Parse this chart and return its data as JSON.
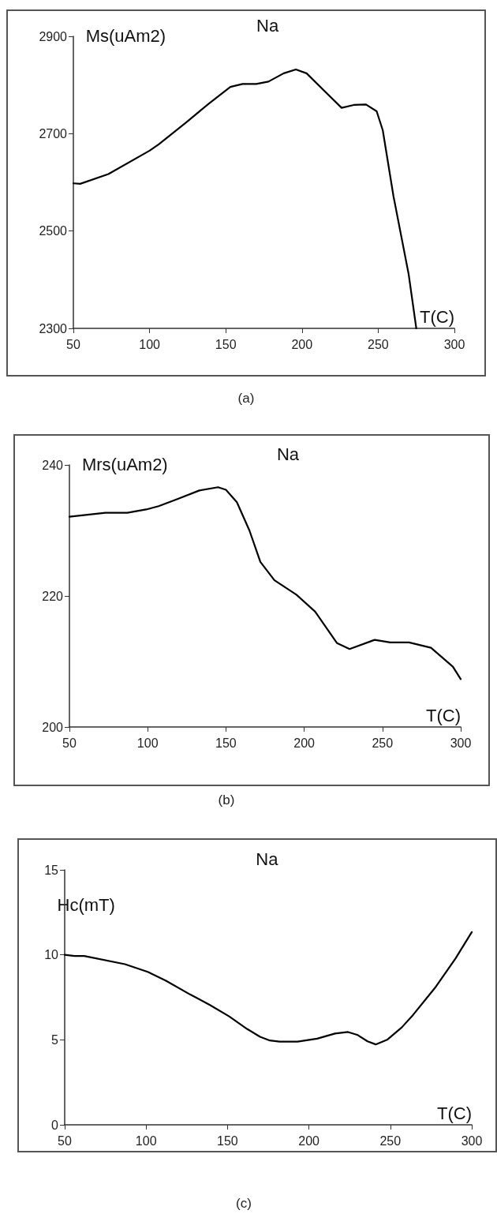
{
  "chart_data": [
    {
      "type": "line",
      "title": "Na",
      "xlabel": "T(C)",
      "ylabel": "Ms(uAm2)",
      "annotations": [
        "(a)"
      ],
      "color": "#000000",
      "marker": "none",
      "grid": false,
      "x": [
        50,
        54.5,
        73,
        100,
        106,
        124,
        139,
        153,
        161,
        170,
        178,
        188,
        196,
        203,
        215,
        226,
        234,
        242,
        249,
        253,
        260,
        270,
        275
      ],
      "values": [
        2598,
        2597,
        2617,
        2665,
        2678,
        2723,
        2762,
        2796,
        2802,
        2802,
        2807,
        2824,
        2832,
        2824,
        2787,
        2753,
        2759,
        2760,
        2746,
        2707,
        2572,
        2411,
        2300
      ],
      "xlim": [
        50,
        300
      ],
      "xticks": [
        50,
        100,
        150,
        200,
        250,
        300
      ],
      "ylim": [
        2300,
        2900
      ],
      "yticks": [
        2300,
        2500,
        2700,
        2900
      ]
    },
    {
      "type": "line",
      "title": "Na",
      "xlabel": "T(C)",
      "ylabel": "Mrs(uAm2)",
      "annotations": [
        "(b)"
      ],
      "color": "#000000",
      "marker": "none",
      "grid": false,
      "x": [
        50,
        73,
        87,
        99,
        107,
        119,
        133,
        145,
        150,
        157,
        165,
        172,
        181,
        195,
        207,
        221,
        229,
        245,
        255,
        267,
        281,
        295,
        300
      ],
      "values": [
        232.1,
        232.7,
        232.7,
        233.2,
        233.7,
        234.8,
        236.1,
        236.6,
        236.2,
        234.3,
        230.0,
        225.2,
        222.4,
        220.2,
        217.6,
        212.8,
        211.9,
        213.3,
        212.9,
        212.9,
        212.1,
        209.2,
        207.3
      ],
      "xlim": [
        50,
        300
      ],
      "xticks": [
        50,
        100,
        150,
        200,
        250,
        300
      ],
      "ylim": [
        200,
        240
      ],
      "yticks": [
        200,
        220,
        240
      ]
    },
    {
      "type": "line",
      "title": "Na",
      "xlabel": "T(C)",
      "ylabel": "Hc(mT)",
      "annotations": [
        "(c)"
      ],
      "color": "#000000",
      "marker": "none",
      "grid": false,
      "x": [
        50,
        56,
        62,
        87,
        101,
        112,
        127,
        139,
        151,
        162,
        170,
        176,
        182,
        193,
        205,
        216,
        224,
        230,
        236,
        241,
        248,
        257,
        264,
        278,
        290,
        300
      ],
      "values": [
        10.0,
        9.93,
        9.93,
        9.45,
        9.0,
        8.49,
        7.67,
        7.06,
        6.38,
        5.64,
        5.18,
        4.96,
        4.89,
        4.89,
        5.07,
        5.37,
        5.46,
        5.28,
        4.91,
        4.73,
        5.0,
        5.73,
        6.47,
        8.13,
        9.78,
        11.34
      ],
      "xlim": [
        50,
        300
      ],
      "xticks": [
        50,
        100,
        150,
        200,
        250,
        300
      ],
      "ylim": [
        0,
        15
      ],
      "yticks": [
        0,
        5,
        10,
        15
      ]
    }
  ]
}
